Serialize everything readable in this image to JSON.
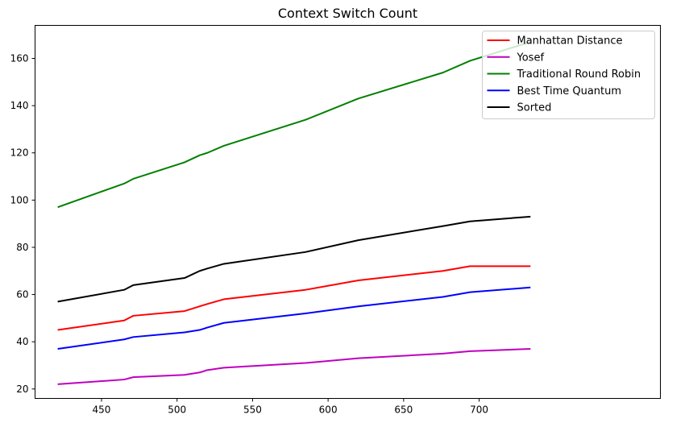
{
  "chart_data": {
    "type": "line",
    "title": "Context Switch Count",
    "xlabel": "",
    "ylabel": "",
    "xlim": [
      406,
      820
    ],
    "ylim": [
      16,
      174
    ],
    "xticks": [
      450,
      500,
      550,
      600,
      650,
      700
    ],
    "yticks": [
      20,
      40,
      60,
      80,
      100,
      120,
      140,
      160
    ],
    "grid": false,
    "legend_position": "top-right",
    "x": [
      421,
      465,
      471,
      505,
      515,
      520,
      531,
      585,
      620,
      676,
      694,
      734
    ],
    "series": [
      {
        "name": "Manhattan Distance",
        "color": "#ff0000",
        "values": [
          45,
          49,
          51,
          53,
          55,
          56,
          58,
          62,
          66,
          70,
          72,
          72
        ]
      },
      {
        "name": "Yosef",
        "color": "#bf00bf",
        "values": [
          22,
          24,
          25,
          26,
          27,
          28,
          29,
          31,
          33,
          35,
          36,
          37
        ]
      },
      {
        "name": "Traditional Round Robin",
        "color": "#008000",
        "values": [
          97,
          107,
          109,
          116,
          119,
          120,
          123,
          134,
          143,
          154,
          159,
          167
        ]
      },
      {
        "name": "Best Time Quantum",
        "color": "#0000ff",
        "values": [
          37,
          41,
          42,
          44,
          45,
          46,
          48,
          52,
          55,
          59,
          61,
          63
        ]
      },
      {
        "name": "Sorted",
        "color": "#000000",
        "values": [
          57,
          62,
          64,
          67,
          70,
          71,
          73,
          78,
          83,
          89,
          91,
          93
        ]
      }
    ]
  }
}
